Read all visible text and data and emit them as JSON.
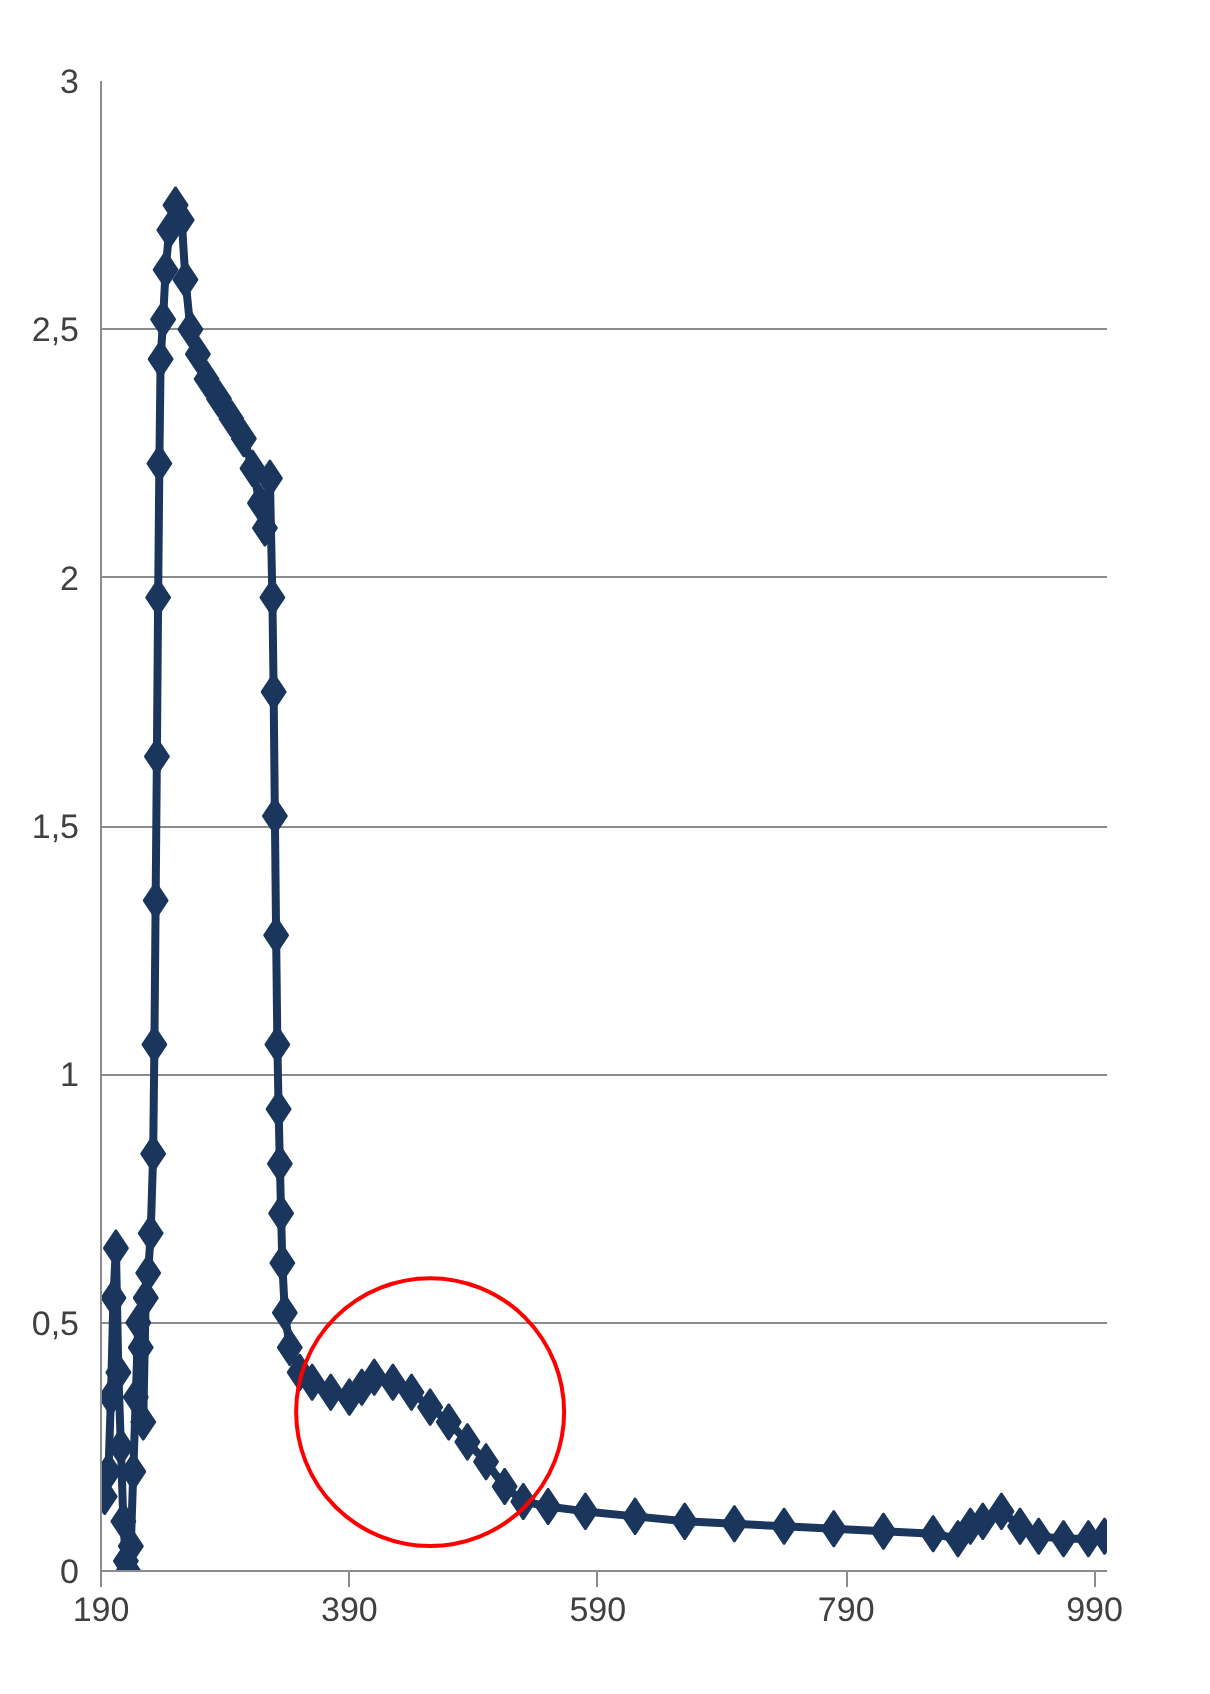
{
  "chart_data": {
    "type": "line",
    "x": [
      193,
      196,
      198,
      200,
      202,
      204,
      206,
      208,
      210,
      212,
      214,
      216,
      218,
      220,
      222,
      224,
      226,
      228,
      230,
      232,
      233,
      234,
      235,
      236,
      237,
      238,
      240,
      242,
      245,
      250,
      255,
      258,
      262,
      268,
      275,
      285,
      295,
      305,
      312,
      318,
      322,
      326,
      328,
      329,
      330,
      331,
      332,
      333,
      334,
      335,
      336,
      338,
      342,
      350,
      360,
      375,
      390,
      400,
      410,
      425,
      440,
      455,
      470,
      485,
      500,
      515,
      530,
      550,
      580,
      620,
      660,
      700,
      740,
      780,
      820,
      860,
      880,
      890,
      900,
      915,
      930,
      945,
      965,
      985,
      998
    ],
    "series": [
      {
        "color": "#1b365d",
        "values": [
          0.15,
          0.2,
          0.35,
          0.55,
          0.65,
          0.4,
          0.25,
          0.1,
          0.02,
          0.0,
          0.05,
          0.2,
          0.35,
          0.5,
          0.45,
          0.3,
          0.55,
          0.6,
          0.68,
          0.84,
          1.06,
          1.35,
          1.64,
          1.96,
          2.23,
          2.44,
          2.52,
          2.62,
          2.7,
          2.75,
          2.72,
          2.6,
          2.5,
          2.45,
          2.4,
          2.36,
          2.32,
          2.28,
          2.22,
          2.15,
          2.1,
          2.2,
          1.96,
          1.77,
          1.52,
          1.28,
          1.06,
          0.93,
          0.82,
          0.72,
          0.62,
          0.52,
          0.45,
          0.4,
          0.38,
          0.36,
          0.35,
          0.37,
          0.39,
          0.38,
          0.36,
          0.33,
          0.3,
          0.26,
          0.22,
          0.17,
          0.14,
          0.13,
          0.12,
          0.11,
          0.1,
          0.095,
          0.09,
          0.085,
          0.08,
          0.075,
          0.065,
          0.09,
          0.1,
          0.12,
          0.09,
          0.07,
          0.065,
          0.065,
          0.07
        ]
      }
    ],
    "xlim": [
      190,
      1000
    ],
    "ylim": [
      0,
      3
    ],
    "xticks": [
      190,
      390,
      590,
      790,
      990
    ],
    "yticks": [
      0,
      {
        "value": 0.5,
        "label": "0,5"
      },
      1,
      {
        "value": 1.5,
        "label": "1,5"
      },
      2,
      {
        "value": 2.5,
        "label": "2,5"
      },
      3
    ],
    "grid": "y",
    "marker": "diamond",
    "line_style": "solid"
  }
}
